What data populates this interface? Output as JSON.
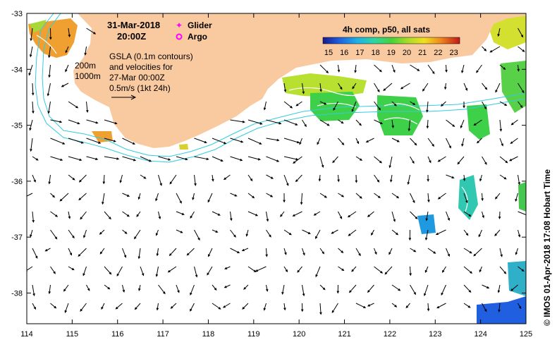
{
  "map": {
    "date": "31-Mar-2018",
    "time": "20:00Z",
    "legend_glider": "Glider",
    "legend_argo": "Argo",
    "annotation_lines": [
      "GSLA (0.1m contours)",
      "and velocities for",
      "27-Mar 00:00Z",
      "0.5m/s (1kt 24h)"
    ],
    "isobath_200": "200m",
    "isobath_1000": "1000m",
    "colorbar_title": "4h comp, p50, all sats",
    "colorbar_ticks": [
      "15",
      "16",
      "17",
      "18",
      "19",
      "20",
      "21",
      "22",
      "23"
    ],
    "credit": "© IMOS 01-Apr-2018 17:08 Hobart Time",
    "lon_ticks": [
      "114",
      "115",
      "116",
      "117",
      "118",
      "119",
      "120",
      "121",
      "122",
      "123",
      "124",
      "125"
    ],
    "lat_ticks": [
      "-33",
      "-34",
      "-35",
      "-36",
      "-37",
      "-38"
    ],
    "colors": {
      "land": "#f9c9a0",
      "glider": "#ff00ff",
      "argo": "#ff00ff",
      "isobath": "#33ccdd",
      "contour": "#ffffff"
    }
  }
}
